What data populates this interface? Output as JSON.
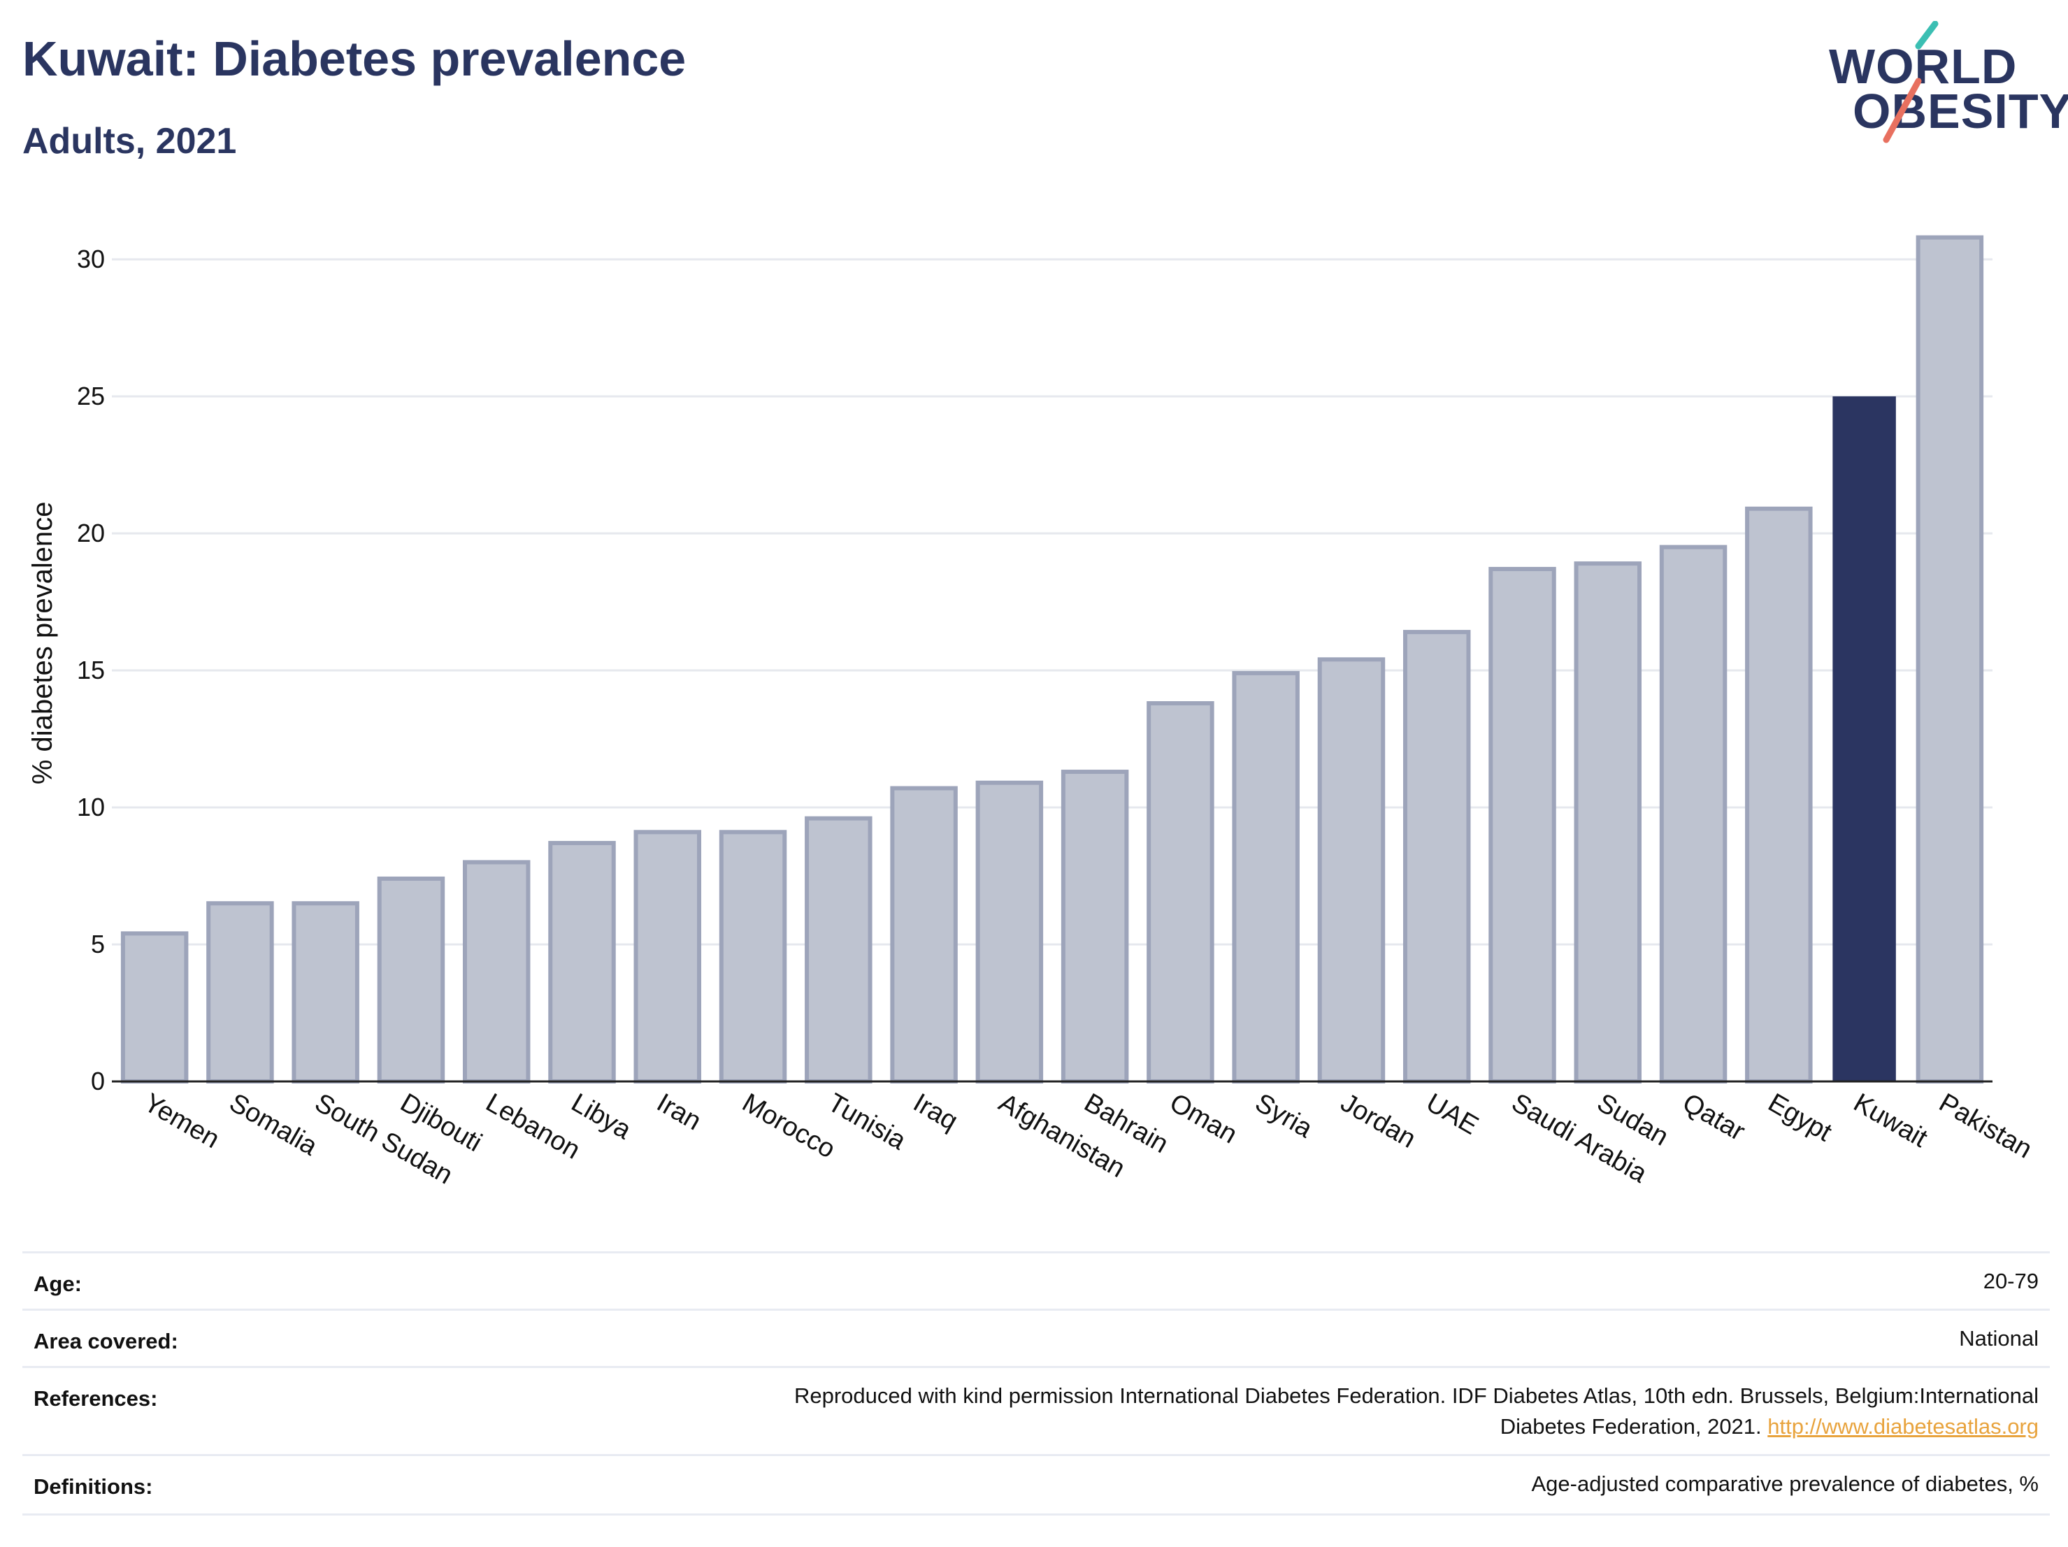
{
  "header": {
    "title": "Kuwait: Diabetes prevalence",
    "subtitle": "Adults, 2021"
  },
  "logo": {
    "line1": "WORLD",
    "line2": "OBESITY",
    "accent_top": "#3bbfb3",
    "accent_bottom": "#e8705f"
  },
  "colors": {
    "highlight": "#2b3561",
    "bar_fill": "#bec3d0",
    "bar_stroke": "#9da4ba",
    "grid": "#e6e8ee",
    "axis": "#222222"
  },
  "chart_data": {
    "type": "bar",
    "title": "",
    "xlabel": "",
    "ylabel": "% diabetes prevalence",
    "ylim": [
      0,
      32
    ],
    "yticks": [
      0,
      5,
      10,
      15,
      20,
      25,
      30
    ],
    "categories": [
      "Yemen",
      "Somalia",
      "South Sudan",
      "Djibouti",
      "Lebanon",
      "Libya",
      "Iran",
      "Morocco",
      "Tunisia",
      "Iraq",
      "Afghanistan",
      "Bahrain",
      "Oman",
      "Syria",
      "Jordan",
      "UAE",
      "Saudi Arabia",
      "Sudan",
      "Qatar",
      "Egypt",
      "Kuwait",
      "Pakistan"
    ],
    "values": [
      5.4,
      6.5,
      6.5,
      7.4,
      8.0,
      8.7,
      9.1,
      9.1,
      9.6,
      10.7,
      10.9,
      11.3,
      13.8,
      14.9,
      15.4,
      16.4,
      18.7,
      18.9,
      19.5,
      20.9,
      25.0,
      30.8
    ],
    "highlight": "Kuwait",
    "grid": true
  },
  "info": {
    "age_label": "Age:",
    "age_value": "20-79",
    "area_label": "Area covered:",
    "area_value": "National",
    "references_label": "References:",
    "references_line1": "Reproduced with kind permission International Diabetes Federation.  IDF Diabetes Atlas, 10th edn. Brussels, Belgium:International",
    "references_line2": "Diabetes Federation, 2021.",
    "references_link": "http://www.diabetesatlas.org",
    "definitions_label": "Definitions:",
    "definitions_value": "Age-adjusted comparative prevalence of diabetes, %"
  }
}
